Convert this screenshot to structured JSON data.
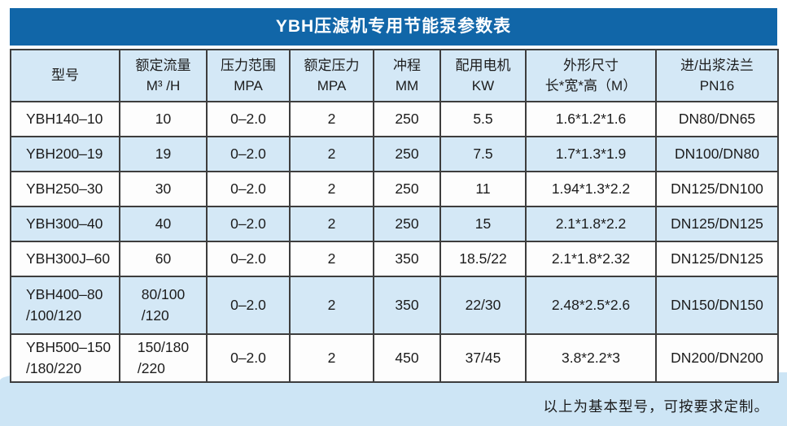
{
  "title": "YBH压滤机专用节能泵参数表",
  "table": {
    "columns": [
      {
        "key": "model",
        "line1": "型号",
        "line2": ""
      },
      {
        "key": "rated-flow",
        "line1": "额定流量",
        "line2": "M³ /H"
      },
      {
        "key": "pressure-range",
        "line1": "压力范围",
        "line2": "MPA"
      },
      {
        "key": "rated-pressure",
        "line1": "额定压力",
        "line2": "MPA"
      },
      {
        "key": "stroke",
        "line1": "冲程",
        "line2": "MM"
      },
      {
        "key": "motor-power",
        "line1": "配用电机",
        "line2": "KW"
      },
      {
        "key": "dimensions",
        "line1": "外形尺寸",
        "line2": "长*宽*高（M）"
      },
      {
        "key": "flange",
        "line1": "进/出浆法兰",
        "line2": "PN16"
      }
    ],
    "rows": [
      [
        "YBH140–10",
        "10",
        "0–2.0",
        "2",
        "250",
        "5.5",
        "1.6*1.2*1.6",
        "DN80/DN65"
      ],
      [
        "YBH200–19",
        "19",
        "0–2.0",
        "2",
        "250",
        "7.5",
        "1.7*1.3*1.9",
        "DN100/DN80"
      ],
      [
        "YBH250–30",
        "30",
        "0–2.0",
        "2",
        "250",
        "11",
        "1.94*1.3*2.2",
        "DN125/DN100"
      ],
      [
        "YBH300–40",
        "40",
        "0–2.0",
        "2",
        "250",
        "15",
        "2.1*1.8*2.2",
        "DN125/DN125"
      ],
      [
        "YBH300J–60",
        "60",
        "0–2.0",
        "2",
        "350",
        "18.5/22",
        "2.1*1.8*2.32",
        "DN125/DN125"
      ],
      [
        "YBH400–80\n/100/120",
        "80/100\n/120",
        "0–2.0",
        "2",
        "350",
        "22/30",
        "2.48*2.5*2.6",
        "DN150/DN150"
      ],
      [
        "YBH500–150\n/180/220",
        "150/180\n/220",
        "0–2.0",
        "2",
        "450",
        "37/45",
        "3.8*2.2*3",
        "DN200/DN200"
      ]
    ]
  },
  "footer": {
    "note": "以上为基本型号，可按要求定制。"
  },
  "colors": {
    "title_bar": "#1166a8",
    "header_row": "#d4e8f6",
    "alt_row": "#d4e8f6",
    "white_row": "#fdfdfd",
    "bottom_band": "#cde5f5",
    "grid_border": "#3d3d3d",
    "title_text": "#ffffff",
    "body_text": "#1c1c1c"
  }
}
